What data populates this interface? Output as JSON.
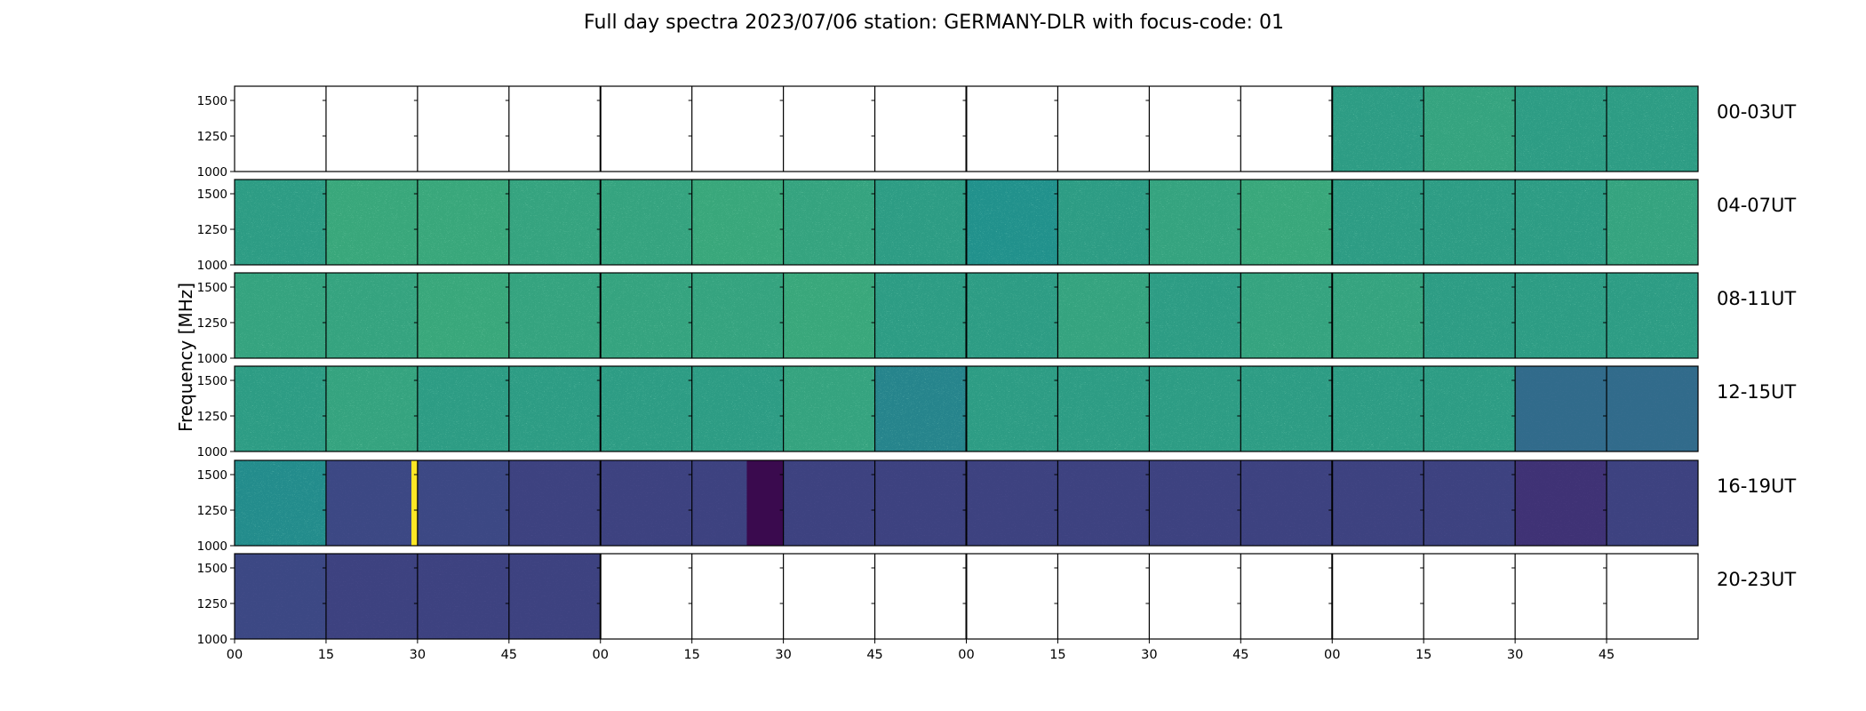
{
  "chart_data": {
    "type": "heatmap",
    "title": "Full day spectra 2023/07/06 station: GERMANY-DLR with focus-code: 01",
    "ylabel": "Frequency [MHz]",
    "xlabel": "",
    "ylim": [
      1000,
      1600
    ],
    "ytick_labels": [
      "1500",
      "1250",
      "1000"
    ],
    "ytick_values": [
      1500,
      1250,
      1000
    ],
    "xtick_labels": [
      "00",
      "15",
      "30",
      "45",
      "00",
      "15",
      "30",
      "45",
      "00",
      "15",
      "30",
      "45",
      "00",
      "15",
      "30",
      "45"
    ],
    "colormap": "viridis",
    "colors": {
      "low": "#440154",
      "mid_low": "#3b528b",
      "mid": "#21918c",
      "high": "#5ec962",
      "max": "#fde725",
      "empty": "#ffffff"
    },
    "segment_minutes": 15,
    "rows": [
      {
        "label": "00-03UT",
        "levels": [
          0,
          0,
          0,
          0,
          0,
          0,
          0,
          0,
          0,
          0,
          0,
          0,
          0.55,
          0.58,
          0.55,
          0.55
        ]
      },
      {
        "label": "04-07UT",
        "levels": [
          0.55,
          0.6,
          0.6,
          0.58,
          0.58,
          0.6,
          0.58,
          0.55,
          0.5,
          0.55,
          0.58,
          0.6,
          0.55,
          0.55,
          0.55,
          0.58
        ]
      },
      {
        "label": "08-11UT",
        "levels": [
          0.58,
          0.58,
          0.6,
          0.58,
          0.58,
          0.58,
          0.6,
          0.55,
          0.55,
          0.58,
          0.55,
          0.58,
          0.58,
          0.55,
          0.55,
          0.55
        ]
      },
      {
        "label": "12-15UT",
        "levels": [
          0.55,
          0.58,
          0.55,
          0.55,
          0.55,
          0.55,
          0.58,
          0.45,
          0.55,
          0.55,
          0.55,
          0.55,
          0.55,
          0.55,
          0.35,
          0.35
        ]
      },
      {
        "label": "16-19UT",
        "levels": [
          0.48,
          0.22,
          0.22,
          0.2,
          0.2,
          0.2,
          0.2,
          0.2,
          0.2,
          0.2,
          0.2,
          0.2,
          0.2,
          0.2,
          0.15,
          0.2
        ]
      },
      {
        "label": "20-23UT",
        "levels": [
          0.22,
          0.2,
          0.2,
          0.2,
          0,
          0,
          0,
          0,
          0,
          0,
          0,
          0,
          0,
          0,
          0,
          0
        ]
      }
    ],
    "annotations": [
      {
        "row": "16-19UT",
        "minute_from": 29,
        "minute_to": 30,
        "kind": "saturated band",
        "color": "#fde725"
      },
      {
        "row": "16-19UT",
        "minute_from": 84,
        "minute_to": 90,
        "kind": "dark block",
        "color": "#3a0a4e"
      }
    ]
  }
}
